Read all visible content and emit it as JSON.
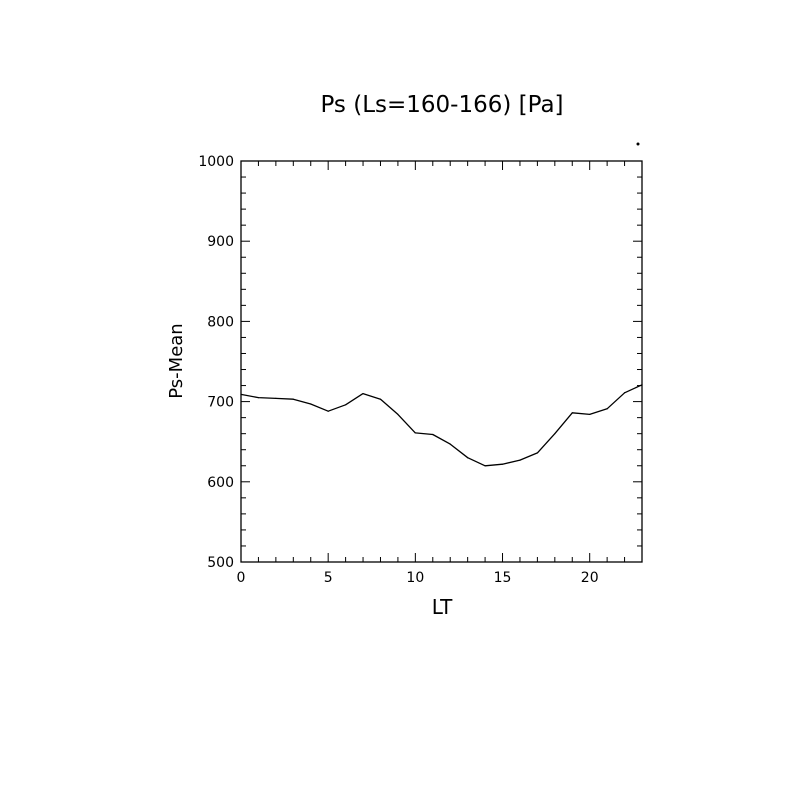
{
  "chart_data": {
    "type": "line",
    "title": "Ps (Ls=160-166) [Pa]",
    "xlabel": "LT",
    "ylabel": "Ps-Mean",
    "xlim": [
      0,
      23
    ],
    "ylim": [
      500,
      1000
    ],
    "xticks": [
      0,
      5,
      10,
      15,
      20
    ],
    "yticks": [
      500,
      600,
      700,
      800,
      900,
      1000
    ],
    "grid": false,
    "series": [
      {
        "x": [
          0,
          1,
          2,
          3,
          4,
          5,
          6,
          7,
          8,
          9,
          10,
          11,
          12,
          13,
          14,
          15,
          16,
          17,
          18,
          19,
          20,
          21,
          22,
          23
        ],
        "values": [
          709,
          705,
          704,
          703,
          697,
          688,
          696,
          710,
          703,
          684,
          661,
          659,
          647,
          630,
          620,
          622,
          627,
          636,
          660,
          686,
          684,
          691,
          711,
          721
        ]
      }
    ]
  }
}
